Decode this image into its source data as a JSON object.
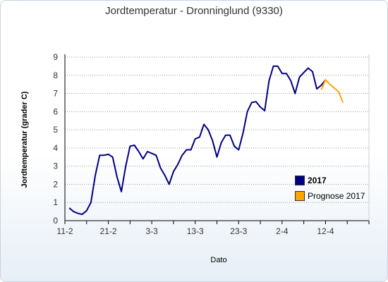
{
  "chart_data": {
    "type": "line",
    "title": "Jordtemperatur - Dronninglund (9330)",
    "xlabel": "Dato",
    "ylabel": "Jordtemperatur (grader C)",
    "ylim": [
      0,
      9
    ],
    "y_ticks": [
      "0",
      "1",
      "2",
      "3",
      "4",
      "5",
      "6",
      "7",
      "8",
      "9"
    ],
    "x_ticks": [
      "11-2",
      "21-2",
      "3-3",
      "13-3",
      "23-3",
      "2-4",
      "12-4"
    ],
    "x_tick_days": [
      0,
      10,
      20,
      30,
      40,
      50,
      60
    ],
    "xlim_days": [
      0,
      70
    ],
    "grid": true,
    "legend_position": "right",
    "series": [
      {
        "name": "2017",
        "color": "#000080",
        "x_days": [
          1,
          2,
          3,
          4,
          5,
          6,
          7,
          8,
          9,
          10,
          11,
          12,
          13,
          14,
          15,
          16,
          17,
          18,
          19,
          20,
          21,
          22,
          23,
          24,
          25,
          26,
          27,
          28,
          29,
          30,
          31,
          32,
          33,
          34,
          35,
          36,
          37,
          38,
          39,
          40,
          41,
          42,
          43,
          44,
          45,
          46,
          47,
          48,
          49,
          50,
          51,
          52,
          53,
          54,
          55,
          56,
          57,
          58,
          59,
          60
        ],
        "values": [
          0.7,
          0.5,
          0.4,
          0.35,
          0.55,
          1.0,
          2.5,
          3.6,
          3.6,
          3.65,
          3.5,
          2.4,
          1.6,
          3.0,
          4.1,
          4.15,
          3.8,
          3.4,
          3.8,
          3.7,
          3.6,
          2.9,
          2.5,
          2.0,
          2.7,
          3.1,
          3.6,
          3.9,
          3.9,
          4.5,
          4.6,
          5.3,
          5.0,
          4.4,
          3.5,
          4.3,
          4.7,
          4.7,
          4.1,
          3.9,
          4.8,
          6.0,
          6.5,
          6.55,
          6.25,
          6.05,
          7.7,
          8.5,
          8.5,
          8.1,
          8.1,
          7.7,
          7.0,
          7.9,
          8.15,
          8.4,
          8.2,
          7.25,
          7.45,
          7.75
        ]
      },
      {
        "name": "Prognose 2017",
        "color": "#ffa500",
        "x_days": [
          59,
          60,
          61,
          62,
          63,
          64
        ],
        "values": [
          7.2,
          7.75,
          7.5,
          7.3,
          7.1,
          6.5
        ]
      }
    ]
  }
}
